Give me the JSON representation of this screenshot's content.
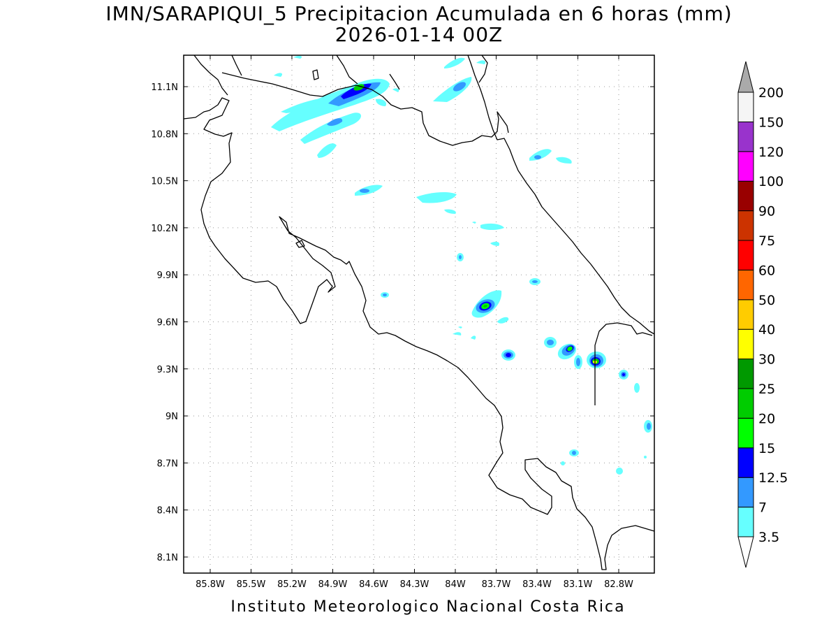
{
  "title": {
    "line1": "IMN/SARAPIQUI_5 Precipitacion Acumulada en 6 horas (mm)",
    "line2": "2026-01-14 00Z"
  },
  "footer": "Instituto Meteorologico Nacional Costa Rica",
  "map": {
    "lon_range": [
      -86.0,
      -82.8
    ],
    "lat_range": [
      8.0,
      11.3
    ],
    "lat_ticks": [
      "11.1N",
      "10.8N",
      "10.5N",
      "10.2N",
      "9.9N",
      "9.6N",
      "9.3N",
      "9N",
      "8.7N",
      "8.4N",
      "8.1N"
    ],
    "lon_ticks": [
      "85.8W",
      "85.5W",
      "85.2W",
      "84.9W",
      "84.6W",
      "84.3W",
      "84W",
      "83.7W",
      "83.4W",
      "83.1W",
      "82.8W"
    ],
    "grid": true,
    "coastline_color": "#000000"
  },
  "colorbar": {
    "labels": [
      "3.5",
      "7",
      "12.5",
      "15",
      "20",
      "25",
      "30",
      "40",
      "50",
      "60",
      "75",
      "90",
      "100",
      "120",
      "150",
      "200"
    ],
    "colors": [
      "#66ffff",
      "#3399ff",
      "#0000ff",
      "#00ff00",
      "#00cc00",
      "#009900",
      "#ffff00",
      "#ffcc00",
      "#ff6600",
      "#ff0000",
      "#cc3300",
      "#990000",
      "#ff00ff",
      "#9933cc",
      "#f5f5f5"
    ],
    "under_color": "#ffffff",
    "over_color": "#aaaaaa"
  },
  "chart_data": {
    "type": "heatmap",
    "title": "IMN/SARAPIQUI_5 Precipitacion Acumulada en 6 horas (mm)",
    "subtitle": "2026-01-14 00Z",
    "units": "mm",
    "levels": [
      3.5,
      7,
      12.5,
      15,
      20,
      25,
      30,
      40,
      50,
      60,
      75,
      90,
      100,
      120,
      150,
      200
    ],
    "xlim": [
      "86W",
      "82.8W"
    ],
    "ylim": [
      "8N",
      "11.3N"
    ],
    "cells": [
      {
        "lon": -84.75,
        "lat": 11.09,
        "max_mm": 20
      },
      {
        "lon": -84.95,
        "lat": 10.98,
        "max_mm": 12.5
      },
      {
        "lon": -84.25,
        "lat": 11.08,
        "max_mm": 7
      },
      {
        "lon": -83.95,
        "lat": 10.45,
        "max_mm": 3.5
      },
      {
        "lon": -84.55,
        "lat": 10.44,
        "max_mm": 7
      },
      {
        "lon": -83.75,
        "lat": 9.7,
        "max_mm": 20
      },
      {
        "lon": -83.6,
        "lat": 9.39,
        "max_mm": 15
      },
      {
        "lon": -83.1,
        "lat": 9.42,
        "max_mm": 20
      },
      {
        "lon": -82.95,
        "lat": 9.35,
        "max_mm": 30
      },
      {
        "lon": -82.75,
        "lat": 9.27,
        "max_mm": 15
      },
      {
        "lon": -83.4,
        "lat": 10.64,
        "max_mm": 7
      },
      {
        "lon": -83.4,
        "lat": 9.84,
        "max_mm": 7
      },
      {
        "lon": -83.1,
        "lat": 8.78,
        "max_mm": 7
      }
    ]
  }
}
